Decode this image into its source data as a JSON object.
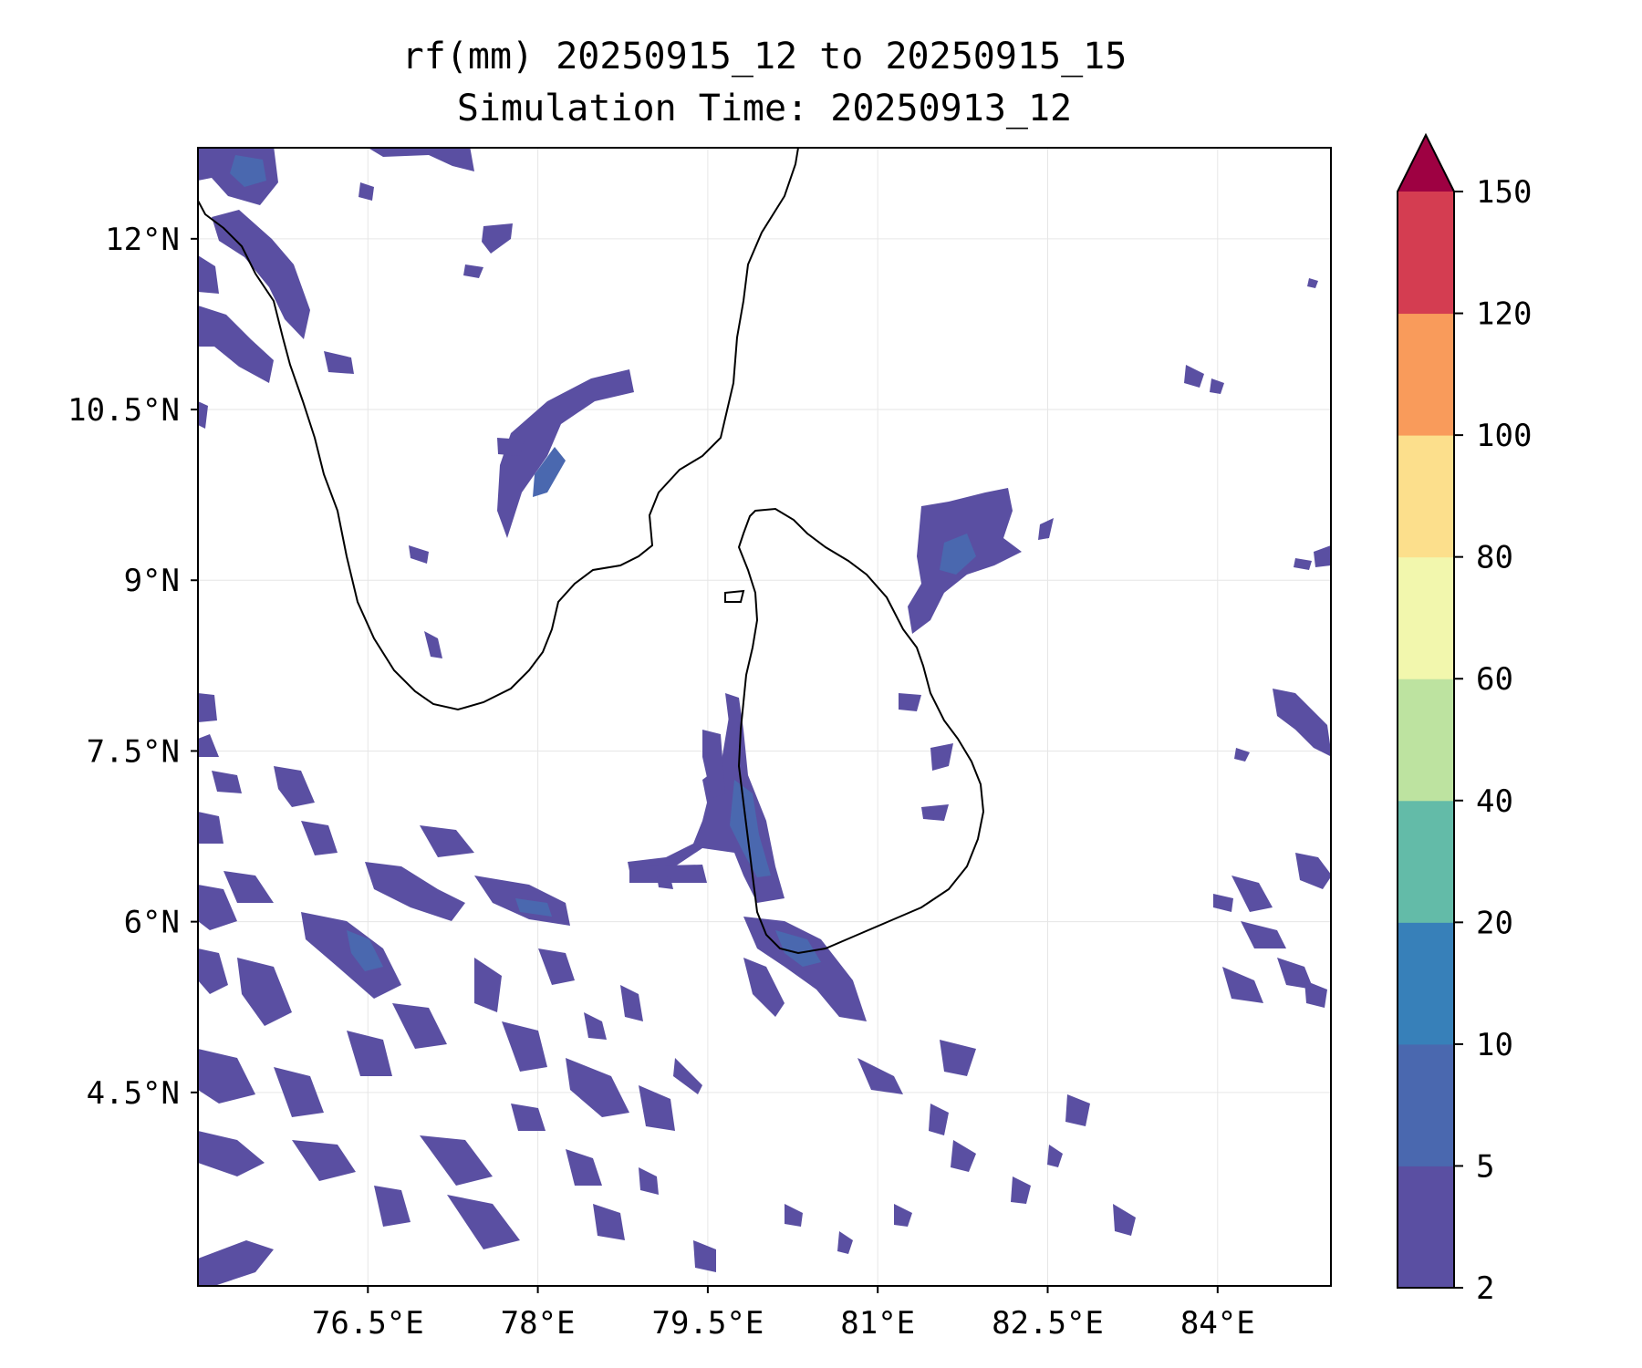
{
  "title_line1": "rf(mm) 20250915_12 to 20250915_15",
  "title_line2": "Simulation Time: 20250913_12",
  "axes": {
    "lon_range": [
      75.0,
      85.0
    ],
    "lat_range": [
      2.8,
      12.8
    ],
    "x_ticks": [
      {
        "value": 76.5,
        "label": "76.5°E"
      },
      {
        "value": 78,
        "label": "78°E"
      },
      {
        "value": 79.5,
        "label": "79.5°E"
      },
      {
        "value": 81,
        "label": "81°E"
      },
      {
        "value": 82.5,
        "label": "82.5°E"
      },
      {
        "value": 84,
        "label": "84°E"
      }
    ],
    "y_ticks": [
      {
        "value": 12,
        "label": "12°N"
      },
      {
        "value": 10.5,
        "label": "10.5°N"
      },
      {
        "value": 9,
        "label": "9°N"
      },
      {
        "value": 7.5,
        "label": "7.5°N"
      },
      {
        "value": 6,
        "label": "6°N"
      },
      {
        "value": 4.5,
        "label": "4.5°N"
      }
    ],
    "grid": true
  },
  "colorbar": {
    "levels": [
      2,
      5,
      10,
      20,
      40,
      60,
      80,
      100,
      120,
      150
    ],
    "tick_labels": [
      "2",
      "5",
      "10",
      "20",
      "40",
      "60",
      "80",
      "100",
      "120",
      "150"
    ],
    "colors": [
      "#5a4fa2",
      "#4a68af",
      "#3780b9",
      "#63bba8",
      "#bde3a0",
      "#f2f7ad",
      "#fcdf8c",
      "#f99b5b",
      "#d43d51"
    ],
    "extend_color": "#9e0142",
    "extend": "max"
  },
  "colors": {
    "rain_light": "#5a4fa2",
    "rain_medium": "#4a68af",
    "rain_heavy": "#3780b9",
    "coastline": "#000000",
    "grid": "#e6e6e6"
  }
}
